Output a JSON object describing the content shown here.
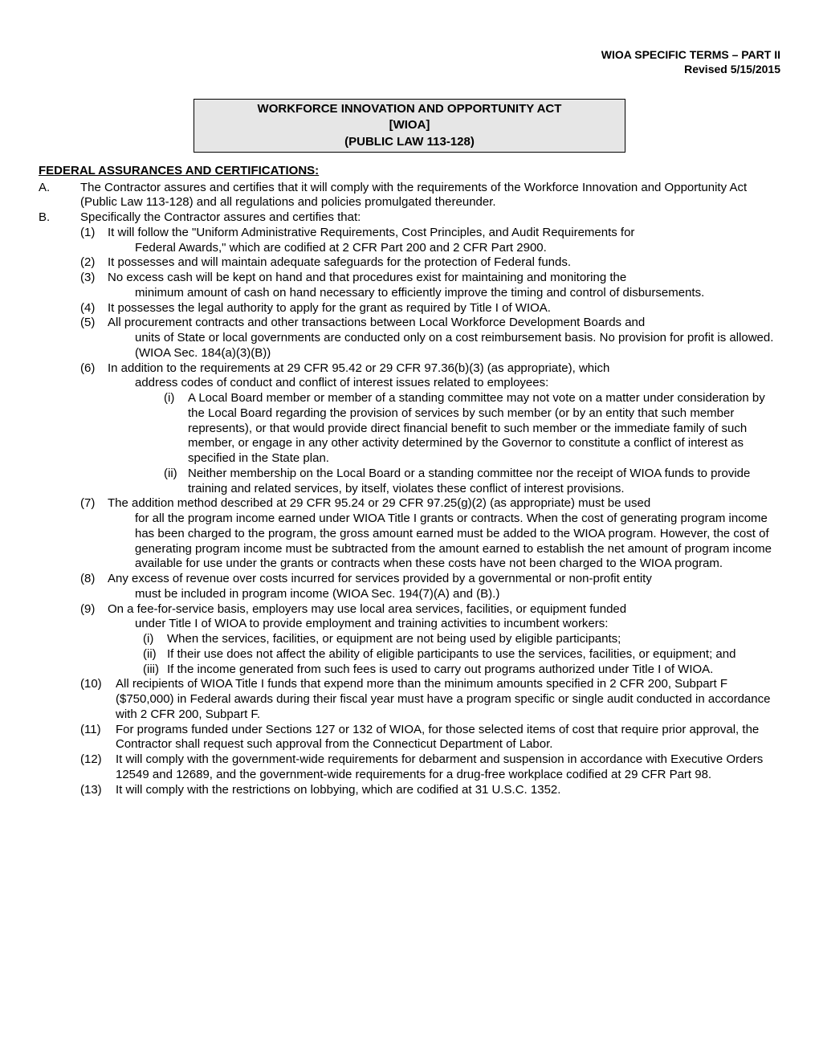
{
  "header": {
    "line1": "WIOA SPECIFIC TERMS – PART II",
    "line2": "Revised 5/15/2015"
  },
  "titleBox": {
    "line1": "WORKFORCE INNOVATION AND OPPORTUNITY ACT",
    "line2": "[WIOA]",
    "line3": "(PUBLIC LAW 113-128)"
  },
  "sectionHeading": "FEDERAL ASSURANCES AND CERTIFICATIONS:",
  "itemA": {
    "letter": "A.",
    "text": "The Contractor assures and certifies that it will comply with the requirements of the Workforce Innovation and Opportunity Act (Public Law 113-128) and all regulations and policies promulgated thereunder."
  },
  "itemB": {
    "letter": "B.",
    "text": "Specifically the Contractor assures and certifies that:"
  },
  "b1": {
    "num": "(1)",
    "lead": "It will follow the \"Uniform Administrative Requirements, Cost Principles, and Audit Requirements for",
    "cont": "Federal Awards,\" which are codified at 2 CFR Part 200 and 2 CFR Part 2900."
  },
  "b2": {
    "num": "(2)",
    "text": "It possesses and will maintain adequate safeguards for the protection of Federal funds."
  },
  "b3": {
    "num": "(3)",
    "lead": "No excess cash will be kept on hand and that procedures exist for maintaining and monitoring the",
    "cont": "minimum amount of cash on hand necessary to efficiently improve the timing and control of disbursements."
  },
  "b4": {
    "num": "(4)",
    "text": "It possesses the legal authority to apply for the grant as required by Title I of WIOA."
  },
  "b5": {
    "num": "(5)",
    "lead": "All procurement contracts and other transactions between Local Workforce Development Boards and",
    "cont": "units of State or local governments are conducted only on a cost reimbursement basis. No provision for profit is allowed. (WIOA Sec. 184(a)(3)(B))"
  },
  "b6": {
    "num": "(6)",
    "lead": "In addition to the requirements at 29 CFR 95.42 or 29 CFR 97.36(b)(3) (as appropriate), which",
    "cont": "address codes of conduct and conflict of interest issues related to employees:",
    "i": {
      "roman": "(i)",
      "text": "A Local Board member or member of a standing committee may not vote on a matter under consideration by the Local Board regarding the provision of services by such member (or by an entity that such member represents), or that would provide direct financial benefit to such member or the immediate family of such member, or engage in any other activity determined by the Governor to constitute a conflict of interest as specified in the State plan."
    },
    "ii": {
      "roman": "(ii)",
      "text": "Neither membership on the Local Board or a standing committee nor the receipt of WIOA funds to provide training and related services, by itself, violates these conflict of interest provisions."
    }
  },
  "b7": {
    "num": "(7)",
    "lead": "The addition method described at 29 CFR 95.24 or 29 CFR 97.25(g)(2) (as appropriate) must be used",
    "cont": "for all the program income earned under WIOA Title I grants or contracts. When the cost of generating program income has been charged to the program, the gross amount earned must be added to the WIOA program. However, the cost of generating program income must be subtracted from the amount earned to establish the net amount of program income available for use under the grants or contracts when these costs have not been charged to the WIOA program."
  },
  "b8": {
    "num": "(8)",
    "lead": "Any excess of revenue over costs incurred for services provided by a governmental or non-profit entity",
    "cont": "must be included in program income (WIOA Sec. 194(7)(A) and (B).)"
  },
  "b9": {
    "num": "(9)",
    "lead": "On a fee-for-service basis, employers may use local area services, facilities, or equipment funded",
    "cont": "under Title I of WIOA to provide employment and training activities to incumbent workers:",
    "i": {
      "roman": "(i)",
      "text": "When the services, facilities, or equipment are not being used by eligible participants;"
    },
    "ii": {
      "roman": "(ii)",
      "text": "If their use does not affect the ability of eligible participants to use the services, facilities, or equipment; and"
    },
    "iii": {
      "roman": "(iii)",
      "text": "If the income generated from such fees is used to carry out programs authorized under Title I of WIOA."
    }
  },
  "b10": {
    "num": "(10)",
    "text": "All recipients of WIOA Title I funds that expend more than the minimum amounts specified in 2 CFR 200, Subpart F ($750,000) in Federal awards during their fiscal year must have a program specific or single audit conducted in accordance with 2 CFR 200, Subpart F."
  },
  "b11": {
    "num": "(11)",
    "text": "For programs funded under Sections 127 or 132 of WIOA, for those selected items of cost that require prior approval, the Contractor shall request such approval from the Connecticut Department of Labor."
  },
  "b12": {
    "num": "(12)",
    "text": "It will comply with the government-wide requirements for debarment and suspension in accordance with Executive Orders 12549 and 12689, and the government-wide requirements for a drug-free workplace codified at 29 CFR Part 98."
  },
  "b13": {
    "num": "(13)",
    "text": "It will comply with the restrictions on lobbying, which are codified at 31 U.S.C. 1352."
  }
}
